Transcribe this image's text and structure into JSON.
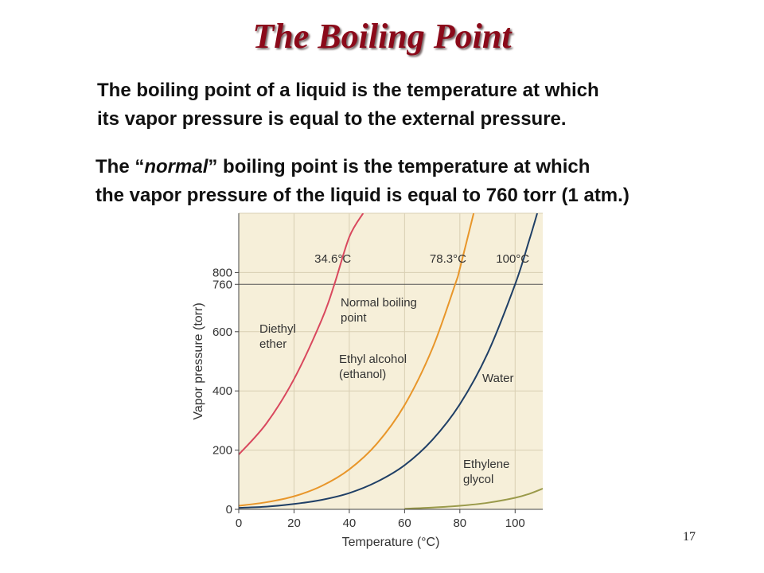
{
  "slide": {
    "title": "The Boiling Point",
    "para1_line1": "The boiling point of a liquid is the temperature at which",
    "para1_line2": "its vapor pressure is equal to the external pressure.",
    "para2_pre": "The “",
    "para2_em": "normal",
    "para2_post": "” boiling point is the temperature at which",
    "para2_line2": "the vapor pressure of the liquid is equal to 760 torr (1 atm.)",
    "slide_number": "17"
  },
  "colors": {
    "title": "#8b0a1a",
    "plot_bg": "#f6efd9",
    "grid": "#d9cfb3",
    "diethyl_ether": "#d9485e",
    "ethyl_alcohol": "#e8962a",
    "water": "#1f3f66",
    "ethylene_glycol": "#9a9a4a"
  },
  "chart_data": {
    "type": "line",
    "xlabel": "Temperature (°C)",
    "ylabel": "Vapor pressure (torr)",
    "xlim": [
      0,
      110
    ],
    "ylim": [
      0,
      1000
    ],
    "x_ticks": [
      "0",
      "20",
      "40",
      "60",
      "80",
      "100"
    ],
    "y_ticks": [
      "0",
      "200",
      "400",
      "600",
      "760",
      "800"
    ],
    "reference_line": {
      "y": 760
    },
    "series": [
      {
        "name": "Diethyl ether",
        "label_lines": [
          "Diethyl",
          "ether"
        ],
        "color_key": "diethyl_ether",
        "points": [
          [
            0,
            185
          ],
          [
            10,
            290
          ],
          [
            20,
            440
          ],
          [
            30,
            640
          ],
          [
            34.6,
            760
          ],
          [
            40,
            920
          ],
          [
            45,
            1000
          ]
        ]
      },
      {
        "name": "Ethyl alcohol (ethanol)",
        "label_lines": [
          "Ethyl alcohol",
          "(ethanol)"
        ],
        "color_key": "ethyl_alcohol",
        "points": [
          [
            0,
            12
          ],
          [
            10,
            24
          ],
          [
            20,
            44
          ],
          [
            30,
            79
          ],
          [
            40,
            135
          ],
          [
            50,
            222
          ],
          [
            60,
            352
          ],
          [
            70,
            542
          ],
          [
            78.3,
            760
          ],
          [
            80,
            813
          ],
          [
            85,
            1000
          ]
        ]
      },
      {
        "name": "Water",
        "label_lines": [
          "Water"
        ],
        "color_key": "water",
        "points": [
          [
            0,
            5
          ],
          [
            10,
            9
          ],
          [
            20,
            18
          ],
          [
            30,
            32
          ],
          [
            40,
            55
          ],
          [
            50,
            93
          ],
          [
            60,
            149
          ],
          [
            70,
            234
          ],
          [
            80,
            355
          ],
          [
            90,
            526
          ],
          [
            100,
            760
          ],
          [
            105,
            906
          ],
          [
            108,
            1000
          ]
        ]
      },
      {
        "name": "Ethylene glycol",
        "label_lines": [
          "Ethylene",
          "glycol"
        ],
        "color_key": "ethylene_glycol",
        "points": [
          [
            60,
            2
          ],
          [
            70,
            6
          ],
          [
            80,
            12
          ],
          [
            90,
            22
          ],
          [
            100,
            39
          ],
          [
            105,
            52
          ],
          [
            110,
            70
          ]
        ]
      }
    ],
    "annotations": [
      {
        "text": "34.6°C",
        "x": 34.6
      },
      {
        "text": "78.3°C",
        "x": 78.3
      },
      {
        "text": "100°C",
        "x": 100
      }
    ],
    "normal_bp_label": [
      "Normal boiling",
      "point"
    ]
  }
}
